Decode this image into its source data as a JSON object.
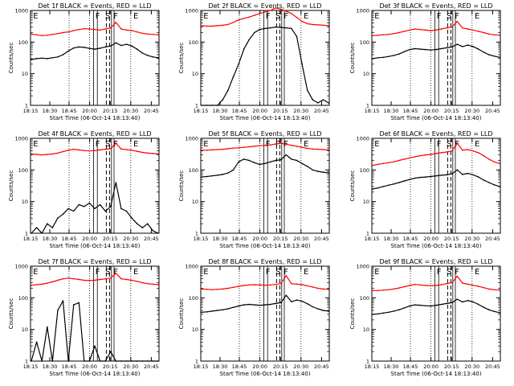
{
  "chart_data": [
    {
      "type": "line",
      "title": "Det 1f BLACK = Events, RED = LLD",
      "ylabel": "Counts/sec",
      "xlabel": "Start Time (06-Oct-14 18:13:40)",
      "x_ticks": [
        "18:15",
        "18:30",
        "18:45",
        "20:00",
        "20:15",
        "20:30",
        "20:45"
      ],
      "y_ticks": [
        "1",
        "10",
        "100",
        "1000"
      ],
      "ylim": [
        1,
        1000
      ],
      "yscale": "log",
      "grid": false,
      "legend": "none",
      "time_labels": [
        "E",
        "F",
        "S",
        "F",
        "E"
      ],
      "series": [
        {
          "name": "RED = LLD",
          "color": "#ff0000",
          "values": [
            180,
            170,
            160,
            165,
            175,
            185,
            200,
            210,
            230,
            250,
            265,
            260,
            250,
            240,
            260,
            280,
            420,
            260,
            240,
            230,
            210,
            190,
            180,
            175,
            170
          ]
        },
        {
          "name": "BLACK = Events",
          "color": "#000000",
          "values": [
            28,
            30,
            31,
            30,
            32,
            34,
            40,
            52,
            65,
            70,
            68,
            63,
            60,
            64,
            70,
            75,
            95,
            78,
            85,
            75,
            60,
            45,
            38,
            34,
            32
          ]
        }
      ]
    },
    {
      "type": "line",
      "title": "Det 2f BLACK = Events, RED = LLD",
      "ylabel": "Counts/sec",
      "xlabel": "Start Time (06-Oct-14 18:13:40)",
      "x_ticks": [
        "18:15",
        "18:30",
        "18:45",
        "20:00",
        "20:15",
        "20:30",
        "20:45"
      ],
      "y_ticks": [
        "1",
        "10",
        "100",
        "1000"
      ],
      "ylim": [
        1,
        1000
      ],
      "yscale": "log",
      "grid": false,
      "legend": "none",
      "time_labels": [
        "E",
        "F",
        "S",
        "F",
        "E"
      ],
      "series": [
        {
          "name": "RED = LLD",
          "color": "#ff0000",
          "values": [
            330,
            320,
            320,
            330,
            340,
            360,
            420,
            500,
            560,
            620,
            700,
            800,
            900,
            1000,
            1200,
            1100,
            950,
            800,
            600,
            450,
            380,
            360,
            350,
            340,
            330
          ]
        },
        {
          "name": "BLACK = Events",
          "color": "#000000",
          "values": [
            1,
            1,
            1,
            1,
            1.5,
            3,
            8,
            20,
            60,
            120,
            200,
            250,
            270,
            280,
            300,
            290,
            280,
            270,
            150,
            20,
            3,
            1.5,
            1.2,
            1.5,
            1.2
          ]
        }
      ]
    },
    {
      "type": "line",
      "title": "Det 3f BLACK = Events, RED = LLD",
      "ylabel": "Counts/sec",
      "xlabel": "Start Time (06-Oct-14 18:13:40)",
      "x_ticks": [
        "18:15",
        "18:30",
        "18:45",
        "20:00",
        "20:15",
        "20:30",
        "20:45"
      ],
      "y_ticks": [
        "1",
        "10",
        "100",
        "1000"
      ],
      "ylim": [
        1,
        1000
      ],
      "yscale": "log",
      "grid": false,
      "legend": "none",
      "time_labels": [
        "E",
        "F",
        "S",
        "F",
        "E"
      ],
      "series": [
        {
          "name": "RED = LLD",
          "color": "#ff0000",
          "values": [
            160,
            165,
            170,
            175,
            185,
            200,
            220,
            240,
            260,
            250,
            240,
            230,
            240,
            260,
            280,
            300,
            450,
            280,
            260,
            240,
            220,
            200,
            180,
            170,
            165
          ]
        },
        {
          "name": "BLACK = Events",
          "color": "#000000",
          "values": [
            30,
            32,
            33,
            35,
            38,
            42,
            50,
            58,
            62,
            60,
            58,
            56,
            58,
            62,
            66,
            70,
            85,
            72,
            80,
            72,
            60,
            48,
            40,
            36,
            33
          ]
        }
      ]
    },
    {
      "type": "line",
      "title": "Det 4f BLACK = Events, RED = LLD",
      "ylabel": "Counts/sec",
      "xlabel": "Start Time (06-Oct-14 18:13:40)",
      "x_ticks": [
        "18:15",
        "18:30",
        "18:45",
        "20:00",
        "20:15",
        "20:30",
        "20:45"
      ],
      "y_ticks": [
        "1",
        "10",
        "100",
        "1000"
      ],
      "ylim": [
        1,
        1000
      ],
      "yscale": "log",
      "grid": false,
      "legend": "none",
      "time_labels": [
        "E",
        "F",
        "S",
        "F",
        "E"
      ],
      "series": [
        {
          "name": "RED = LLD",
          "color": "#ff0000",
          "values": [
            320,
            310,
            300,
            310,
            320,
            340,
            380,
            420,
            450,
            430,
            410,
            400,
            410,
            430,
            450,
            470,
            700,
            460,
            440,
            420,
            390,
            360,
            340,
            330,
            320
          ]
        },
        {
          "name": "BLACK = Events",
          "color": "#000000",
          "values": [
            1,
            1.5,
            1,
            2,
            1.5,
            3,
            4,
            6,
            5,
            8,
            7,
            9,
            6,
            8,
            5,
            7,
            40,
            6,
            5,
            3,
            2,
            1.5,
            2,
            1.2,
            1
          ]
        }
      ]
    },
    {
      "type": "line",
      "title": "Det 5f BLACK = Events, RED = LLD",
      "ylabel": "Counts/sec",
      "xlabel": "Start Time (06-Oct-14 18:13:40)",
      "x_ticks": [
        "18:15",
        "18:30",
        "18:45",
        "20:00",
        "20:15",
        "20:30",
        "20:45"
      ],
      "y_ticks": [
        "1",
        "10",
        "100",
        "1000"
      ],
      "ylim": [
        1,
        1000
      ],
      "yscale": "log",
      "grid": false,
      "legend": "none",
      "time_labels": [
        "E",
        "F",
        "P",
        "F",
        "E"
      ],
      "series": [
        {
          "name": "RED = LLD",
          "color": "#ff0000",
          "values": [
            420,
            420,
            430,
            440,
            450,
            470,
            490,
            500,
            520,
            540,
            560,
            580,
            600,
            620,
            660,
            700,
            650,
            600,
            560,
            520,
            480,
            460,
            450,
            440,
            430
          ]
        },
        {
          "name": "BLACK = Events",
          "color": "#000000",
          "values": [
            60,
            62,
            65,
            68,
            72,
            80,
            100,
            180,
            220,
            200,
            170,
            150,
            160,
            180,
            200,
            210,
            300,
            220,
            200,
            160,
            130,
            100,
            90,
            85,
            80
          ]
        }
      ]
    },
    {
      "type": "line",
      "title": "Det 6f BLACK = Events, RED = LLD",
      "ylabel": "Counts/sec",
      "xlabel": "Start Time (06-Oct-14 18:13:40)",
      "x_ticks": [
        "18:15",
        "18:30",
        "18:45",
        "20:00",
        "20:15",
        "20:30",
        "20:45"
      ],
      "y_ticks": [
        "1",
        "10",
        "100",
        "1000"
      ],
      "ylim": [
        1,
        1000
      ],
      "yscale": "log",
      "grid": false,
      "legend": "none",
      "time_labels": [
        "E",
        "F",
        "S",
        "F",
        "E"
      ],
      "series": [
        {
          "name": "RED = LLD",
          "color": "#ff0000",
          "values": [
            140,
            150,
            160,
            170,
            180,
            200,
            220,
            240,
            260,
            280,
            300,
            310,
            330,
            350,
            370,
            400,
            700,
            420,
            440,
            400,
            350,
            280,
            220,
            180,
            160
          ]
        },
        {
          "name": "BLACK = Events",
          "color": "#000000",
          "values": [
            25,
            27,
            30,
            33,
            36,
            40,
            45,
            50,
            55,
            58,
            60,
            62,
            65,
            68,
            70,
            75,
            100,
            72,
            78,
            70,
            60,
            48,
            40,
            34,
            30
          ]
        }
      ]
    },
    {
      "type": "line",
      "title": "Det 7f BLACK = Events, RED = LLD",
      "ylabel": "Counts/sec",
      "xlabel": "Start Time (06-Oct-14 18:13:40)",
      "x_ticks": [
        "18:15",
        "18:30",
        "18:45",
        "20:00",
        "20:15",
        "20:30",
        "20:45"
      ],
      "y_ticks": [
        "1",
        "10",
        "100",
        "1000"
      ],
      "ylim": [
        1,
        1000
      ],
      "yscale": "log",
      "grid": false,
      "legend": "none",
      "time_labels": [
        "E",
        "F",
        "S",
        "F",
        "E"
      ],
      "series": [
        {
          "name": "RED = LLD",
          "color": "#ff0000",
          "values": [
            250,
            260,
            270,
            290,
            320,
            360,
            400,
            420,
            400,
            380,
            360,
            350,
            360,
            380,
            400,
            420,
            600,
            400,
            380,
            360,
            330,
            300,
            280,
            270,
            260
          ]
        },
        {
          "name": "BLACK = Events",
          "color": "#000000",
          "values": [
            1,
            4,
            1,
            12,
            1,
            40,
            80,
            1,
            60,
            70,
            1,
            1,
            3,
            1,
            1,
            2,
            1,
            1,
            1,
            1,
            1,
            1,
            1,
            1,
            1
          ]
        }
      ]
    },
    {
      "type": "line",
      "title": "Det 8f BLACK = Events, RED = LLD",
      "ylabel": "Counts/sec",
      "xlabel": "Start Time (06-Oct-14 18:13:40)",
      "x_ticks": [
        "18:15",
        "18:30",
        "18:45",
        "20:00",
        "20:15",
        "20:30",
        "20:45"
      ],
      "y_ticks": [
        "1",
        "10",
        "100",
        "1000"
      ],
      "ylim": [
        1,
        1000
      ],
      "yscale": "log",
      "grid": false,
      "legend": "none",
      "time_labels": [
        "E",
        "F",
        "S",
        "F",
        "E"
      ],
      "series": [
        {
          "name": "RED = LLD",
          "color": "#ff0000",
          "values": [
            190,
            185,
            180,
            185,
            190,
            200,
            215,
            230,
            245,
            255,
            260,
            255,
            250,
            255,
            265,
            280,
            500,
            280,
            270,
            260,
            240,
            220,
            200,
            190,
            185
          ]
        },
        {
          "name": "BLACK = Events",
          "color": "#000000",
          "values": [
            35,
            36,
            38,
            40,
            42,
            45,
            50,
            55,
            60,
            62,
            60,
            58,
            60,
            62,
            66,
            70,
            120,
            75,
            85,
            78,
            65,
            52,
            45,
            40,
            38
          ]
        }
      ]
    },
    {
      "type": "line",
      "title": "Det 9f BLACK = Events, RED = LLD",
      "ylabel": "Counts/sec",
      "xlabel": "Start Time (06-Oct-14 18:13:40)",
      "x_ticks": [
        "18:15",
        "18:30",
        "18:45",
        "20:00",
        "20:15",
        "20:30",
        "20:45"
      ],
      "y_ticks": [
        "1",
        "10",
        "100",
        "1000"
      ],
      "ylim": [
        1,
        1000
      ],
      "yscale": "log",
      "grid": false,
      "legend": "none",
      "time_labels": [
        "E",
        "F",
        "S",
        "F",
        "E"
      ],
      "series": [
        {
          "name": "RED = LLD",
          "color": "#ff0000",
          "values": [
            170,
            170,
            175,
            180,
            190,
            205,
            225,
            245,
            265,
            255,
            245,
            240,
            245,
            260,
            280,
            300,
            480,
            290,
            270,
            250,
            230,
            210,
            190,
            180,
            175
          ]
        },
        {
          "name": "BLACK = Events",
          "color": "#000000",
          "values": [
            30,
            31,
            33,
            35,
            38,
            42,
            48,
            55,
            60,
            58,
            56,
            55,
            58,
            62,
            66,
            70,
            90,
            74,
            82,
            74,
            62,
            50,
            42,
            37,
            34
          ]
        }
      ]
    }
  ]
}
